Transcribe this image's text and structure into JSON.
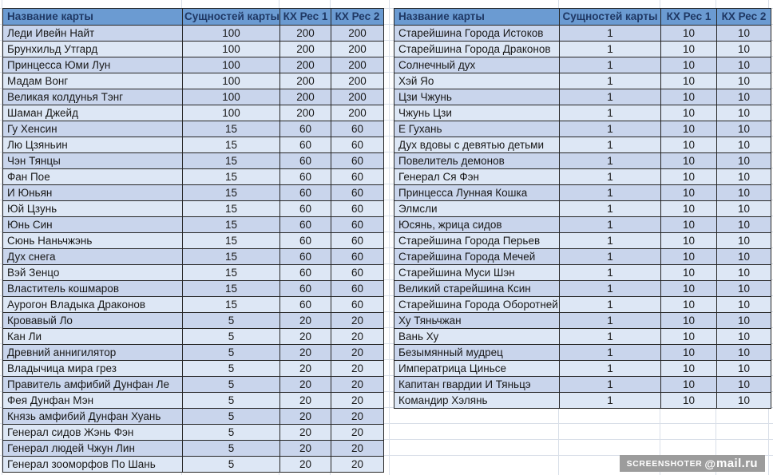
{
  "tables": [
    {
      "name": "left-card-table",
      "headers": [
        "Название карты",
        "Сущностей карты",
        "КХ Рес 1",
        "КХ Рес 2"
      ],
      "rows": [
        [
          "Леди Ивейн Найт",
          "100",
          "200",
          "200"
        ],
        [
          "Брунхильд Утгард",
          "100",
          "200",
          "200"
        ],
        [
          "Принцесса Юми Лун",
          "100",
          "200",
          "200"
        ],
        [
          "Мадам Вонг",
          "100",
          "200",
          "200"
        ],
        [
          "Великая колдунья Тэнг",
          "100",
          "200",
          "200"
        ],
        [
          "Шаман Джейд",
          "100",
          "200",
          "200"
        ],
        [
          "Гу Хенсин",
          "15",
          "60",
          "60"
        ],
        [
          "Лю Цзяньин",
          "15",
          "60",
          "60"
        ],
        [
          "Чэн Тянцы",
          "15",
          "60",
          "60"
        ],
        [
          "Фан Пое",
          "15",
          "60",
          "60"
        ],
        [
          "И Юньян",
          "15",
          "60",
          "60"
        ],
        [
          "Юй Цзунь",
          "15",
          "60",
          "60"
        ],
        [
          "Юнь Син",
          "15",
          "60",
          "60"
        ],
        [
          "Сюнь Наньчжэнь",
          "15",
          "60",
          "60"
        ],
        [
          "Дух снега",
          "15",
          "60",
          "60"
        ],
        [
          "Вэй Зенцо",
          "15",
          "60",
          "60"
        ],
        [
          "Властитель кошмаров",
          "15",
          "60",
          "60"
        ],
        [
          "Аурогон Владыка Драконов",
          "15",
          "60",
          "60"
        ],
        [
          "Кровавый Ло",
          "5",
          "20",
          "20"
        ],
        [
          "Кан Ли",
          "5",
          "20",
          "20"
        ],
        [
          "Древний аннигилятор",
          "5",
          "20",
          "20"
        ],
        [
          "Владычица мира грез",
          "5",
          "20",
          "20"
        ],
        [
          "Правитель амфибий Дунфан Ле",
          "5",
          "20",
          "20"
        ],
        [
          "Фея Дунфан Мэн",
          "5",
          "20",
          "20"
        ],
        [
          "Князь амфибий Дунфан Хуань",
          "5",
          "20",
          "20"
        ],
        [
          "Генерал сидов Жэнь Фэн",
          "5",
          "20",
          "20"
        ],
        [
          "Генерал людей Чжун Лин",
          "5",
          "20",
          "20"
        ],
        [
          "Генерал зооморфов По Шань",
          "5",
          "20",
          "20"
        ]
      ]
    },
    {
      "name": "right-card-table",
      "headers": [
        "Название карты",
        "Сущностей карты",
        "КХ Рес 1",
        "КХ Рес 2"
      ],
      "rows": [
        [
          "Старейшина Города Истоков",
          "1",
          "10",
          "10"
        ],
        [
          "Старейшина Города Драконов",
          "1",
          "10",
          "10"
        ],
        [
          "Солнечный дух",
          "1",
          "10",
          "10"
        ],
        [
          "Хэй Яо",
          "1",
          "10",
          "10"
        ],
        [
          "Цзи Чжунь",
          "1",
          "10",
          "10"
        ],
        [
          "Чжунь Цзи",
          "1",
          "10",
          "10"
        ],
        [
          "Е Гухань",
          "1",
          "10",
          "10"
        ],
        [
          "Дух вдовы с девятью детьми",
          "1",
          "10",
          "10"
        ],
        [
          "Повелитель демонов",
          "1",
          "10",
          "10"
        ],
        [
          "Генерал Ся Фэн",
          "1",
          "10",
          "10"
        ],
        [
          "Принцесса Лунная Кошка",
          "1",
          "10",
          "10"
        ],
        [
          "Элмсли",
          "1",
          "10",
          "10"
        ],
        [
          "Юсянь, жрица сидов",
          "1",
          "10",
          "10"
        ],
        [
          "Старейшина Города Перьев",
          "1",
          "10",
          "10"
        ],
        [
          "Старейшина Города Мечей",
          "1",
          "10",
          "10"
        ],
        [
          "Старейшина Муси Шэн",
          "1",
          "10",
          "10"
        ],
        [
          "Великий старейшина Ксин",
          "1",
          "10",
          "10"
        ],
        [
          "Старейшина Города Оборотней",
          "1",
          "10",
          "10"
        ],
        [
          "Ху Тяньчжан",
          "1",
          "10",
          "10"
        ],
        [
          "Вань Ху",
          "1",
          "10",
          "10"
        ],
        [
          "Безымянный мудрец",
          "1",
          "10",
          "10"
        ],
        [
          "Императрица Циньсе",
          "1",
          "10",
          "10"
        ],
        [
          "Капитан гвардии И Тяньцэ",
          "1",
          "10",
          "10"
        ],
        [
          "Командир Хэлянь",
          "1",
          "10",
          "10"
        ]
      ]
    }
  ],
  "watermark": {
    "label": "SCREENSHOTER",
    "at": "@",
    "brand": "mail.ru"
  },
  "colors": {
    "header_bg": "#6b9bd2",
    "header_text": "#1f3864",
    "row_odd": "#c9d5ec",
    "row_even": "#dde7f5",
    "cell_border": "#262626",
    "gridline": "#d9dfe8",
    "watermark_bg": "#9c9c9c",
    "watermark_text": "#ffffff"
  }
}
